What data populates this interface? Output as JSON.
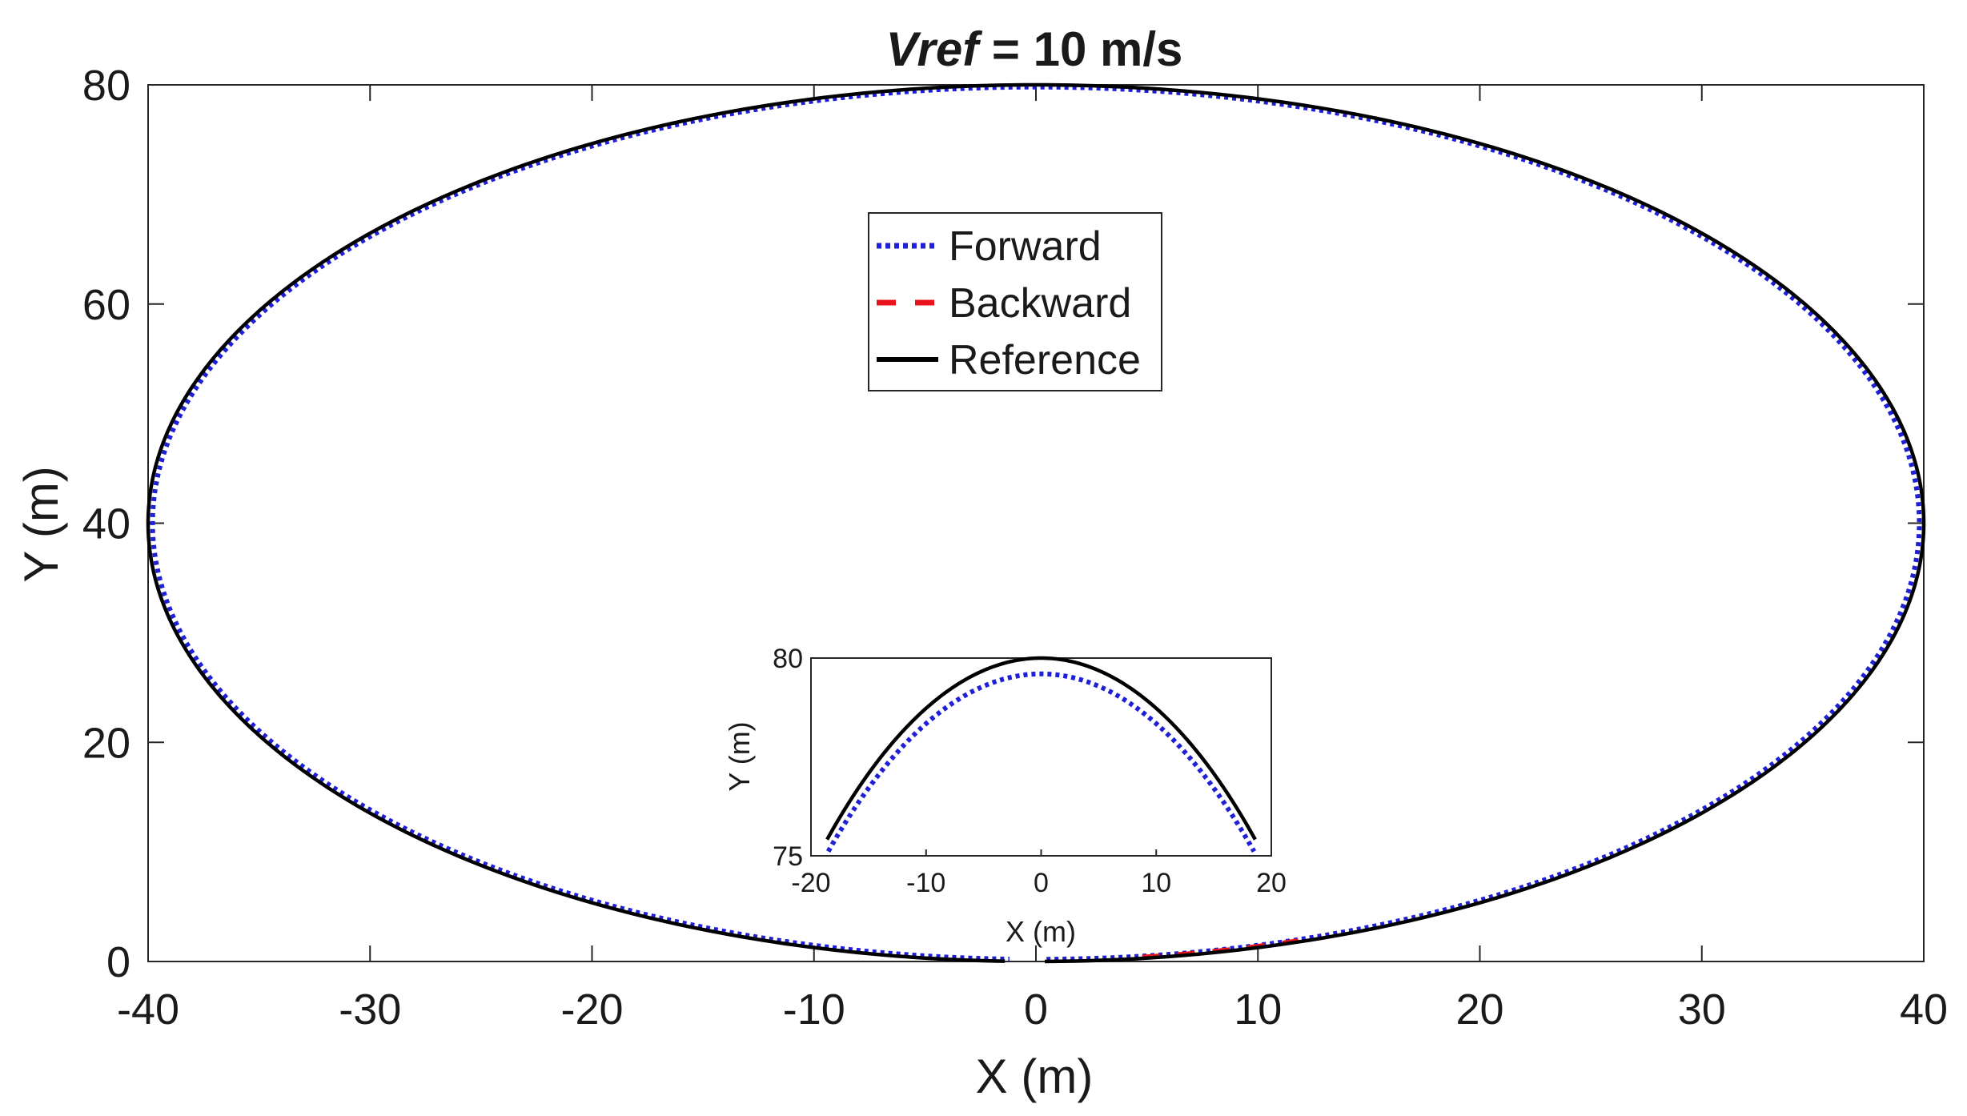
{
  "chart_data": [
    {
      "type": "line",
      "title_italic": "Vref",
      "title_rest": " = 10 m/s",
      "xlabel": "X (m)",
      "ylabel": "Y (m)",
      "xlim": [
        -40,
        40
      ],
      "ylim": [
        0,
        80
      ],
      "xticks": [
        -40,
        -30,
        -20,
        -10,
        0,
        10,
        20,
        30,
        40
      ],
      "yticks": [
        0,
        20,
        40,
        60,
        80
      ],
      "xtick_labels": [
        "-40",
        "-30",
        "-20",
        "-10",
        "0",
        "10",
        "20",
        "30",
        "40"
      ],
      "ytick_labels": [
        "0",
        "20",
        "40",
        "60",
        "80"
      ],
      "legend": {
        "placement": "upper-center",
        "entries": [
          {
            "label": "Forward",
            "style": "dotted",
            "color": "#1f1fd6"
          },
          {
            "label": "Backward",
            "style": "dashed",
            "color": "#e8141a"
          },
          {
            "label": "Reference",
            "style": "solid",
            "color": "#000000"
          }
        ]
      },
      "series": [
        {
          "name": "Reference",
          "shape": "ellipse",
          "center": [
            0,
            40
          ],
          "semi_axis_x": 40,
          "semi_axis_y": 40,
          "color": "#000000"
        },
        {
          "name": "Forward",
          "shape": "ellipse",
          "center": [
            0,
            40
          ],
          "semi_axis_x": 39.8,
          "semi_axis_y": 39.8,
          "color": "#1f1fd6"
        },
        {
          "name": "Backward",
          "shape": "arc",
          "x_range": [
            5,
            12
          ],
          "color": "#e8141a"
        }
      ]
    },
    {
      "type": "line",
      "inset": true,
      "xlabel": "X (m)",
      "ylabel": "Y (m)",
      "xlim": [
        -20,
        20
      ],
      "ylim": [
        75,
        80
      ],
      "xticks": [
        -20,
        -10,
        0,
        10,
        20
      ],
      "yticks": [
        75,
        80
      ],
      "xtick_labels": [
        "-20",
        "-10",
        "0",
        "10",
        "20"
      ],
      "ytick_labels": [
        "75",
        "80"
      ],
      "series": [
        {
          "name": "Reference",
          "peak": 80,
          "color": "#000000"
        },
        {
          "name": "Forward",
          "peak": 79.6,
          "color": "#1f1fd6"
        }
      ]
    }
  ],
  "colors": {
    "axis": "#262626",
    "reference": "#000000",
    "forward": "#1f1fd6",
    "backward": "#e8141a"
  }
}
